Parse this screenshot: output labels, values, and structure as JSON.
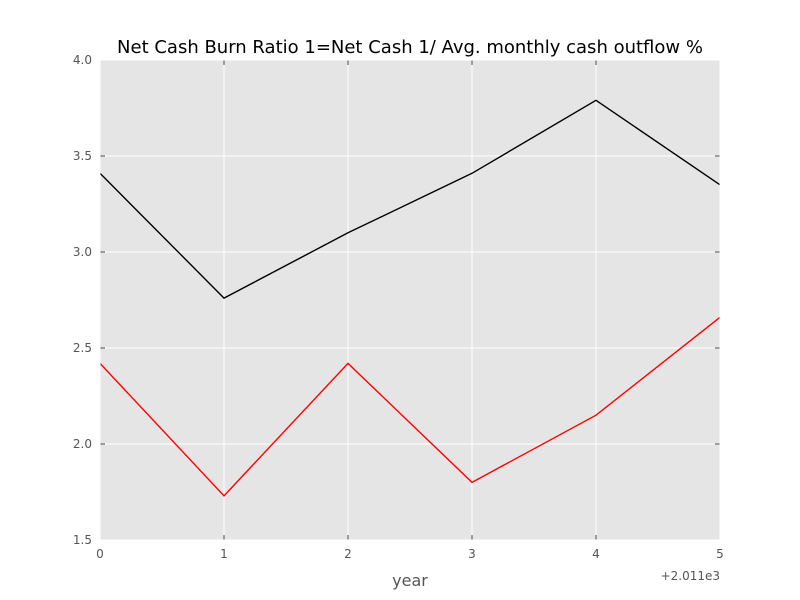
{
  "chart_data": {
    "type": "line",
    "title": "Net Cash Burn Ratio 1=Net Cash 1/ Avg. monthly cash outflow %",
    "xlabel": "year",
    "ylabel": "",
    "x_offset_label": "+2.011e3",
    "x": [
      0,
      1,
      2,
      3,
      4,
      5
    ],
    "x_tick_labels": [
      "0",
      "1",
      "2",
      "3",
      "4",
      "5"
    ],
    "y_tick_labels": [
      "1.5",
      "2.0",
      "2.5",
      "3.0",
      "3.5",
      "4.0"
    ],
    "xlim": [
      0,
      5
    ],
    "ylim": [
      1.5,
      4.0
    ],
    "grid": true,
    "background": "#e5e5e5",
    "series": [
      {
        "color": "#000000",
        "values": [
          3.41,
          2.76,
          3.1,
          3.41,
          3.79,
          3.35
        ]
      },
      {
        "color": "#ff0000",
        "values": [
          2.42,
          1.73,
          2.42,
          1.8,
          2.15,
          2.66
        ]
      }
    ]
  }
}
